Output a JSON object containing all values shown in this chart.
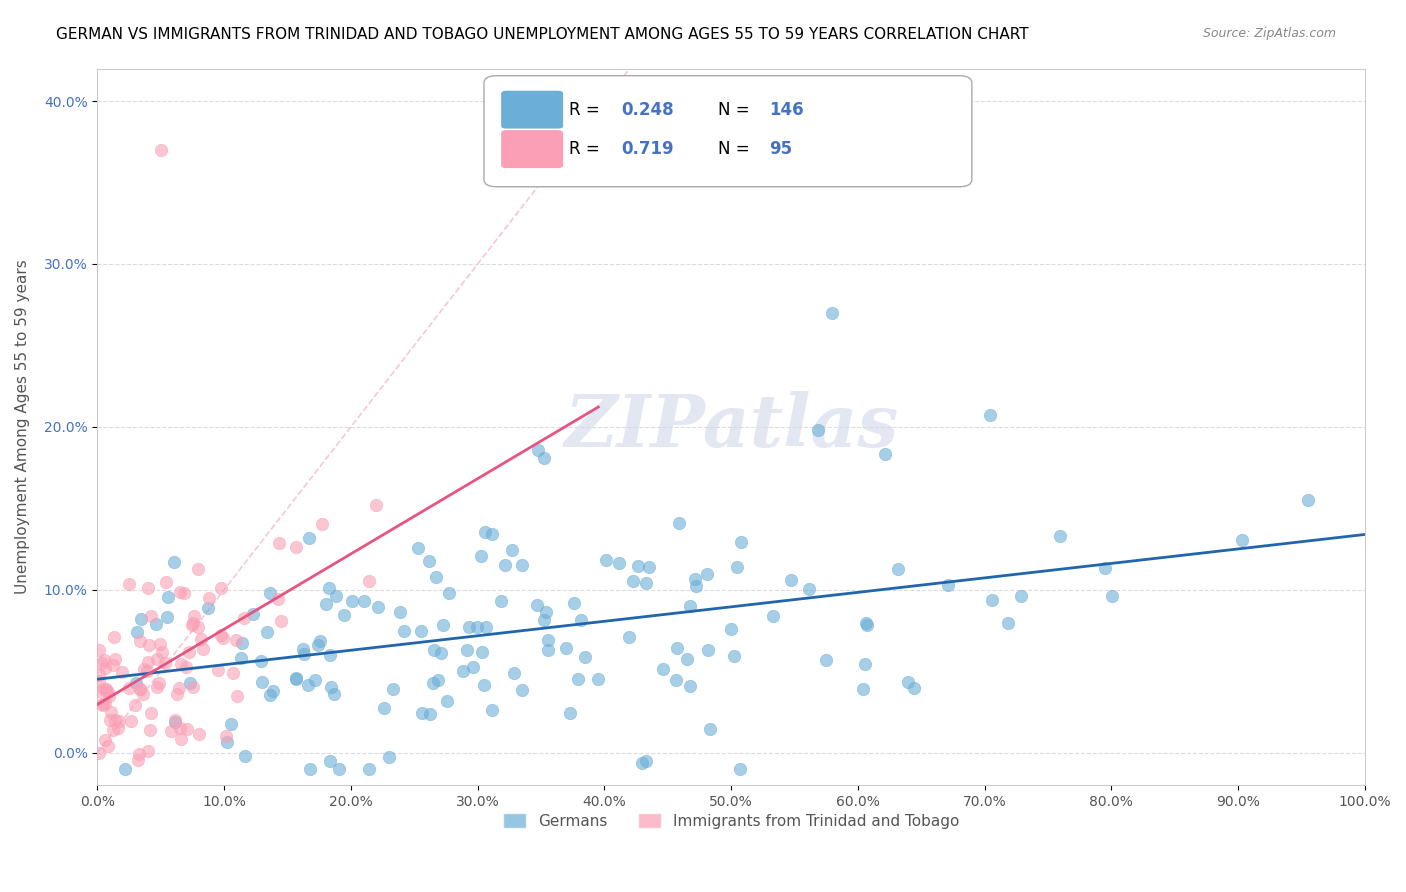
{
  "title": "GERMAN VS IMMIGRANTS FROM TRINIDAD AND TOBAGO UNEMPLOYMENT AMONG AGES 55 TO 59 YEARS CORRELATION CHART",
  "source": "Source: ZipAtlas.com",
  "ylabel": "Unemployment Among Ages 55 to 59 years",
  "xlim": [
    0,
    1.0
  ],
  "ylim": [
    -0.02,
    0.42
  ],
  "german_R": 0.248,
  "german_N": 146,
  "tt_R": 0.719,
  "tt_N": 95,
  "german_color": "#6baed6",
  "tt_color": "#fa9fb5",
  "german_line_color": "#2166ac",
  "tt_line_color": "#e75480",
  "diagonal_color": "#f4b8cc",
  "r_n_color": "#4472c4",
  "watermark_color": "#d0d8e8",
  "legend_labels": [
    "Germans",
    "Immigrants from Trinidad and Tobago"
  ],
  "title_fontsize": 11,
  "axis_label_fontsize": 11,
  "tick_fontsize": 10,
  "legend_fontsize": 11
}
